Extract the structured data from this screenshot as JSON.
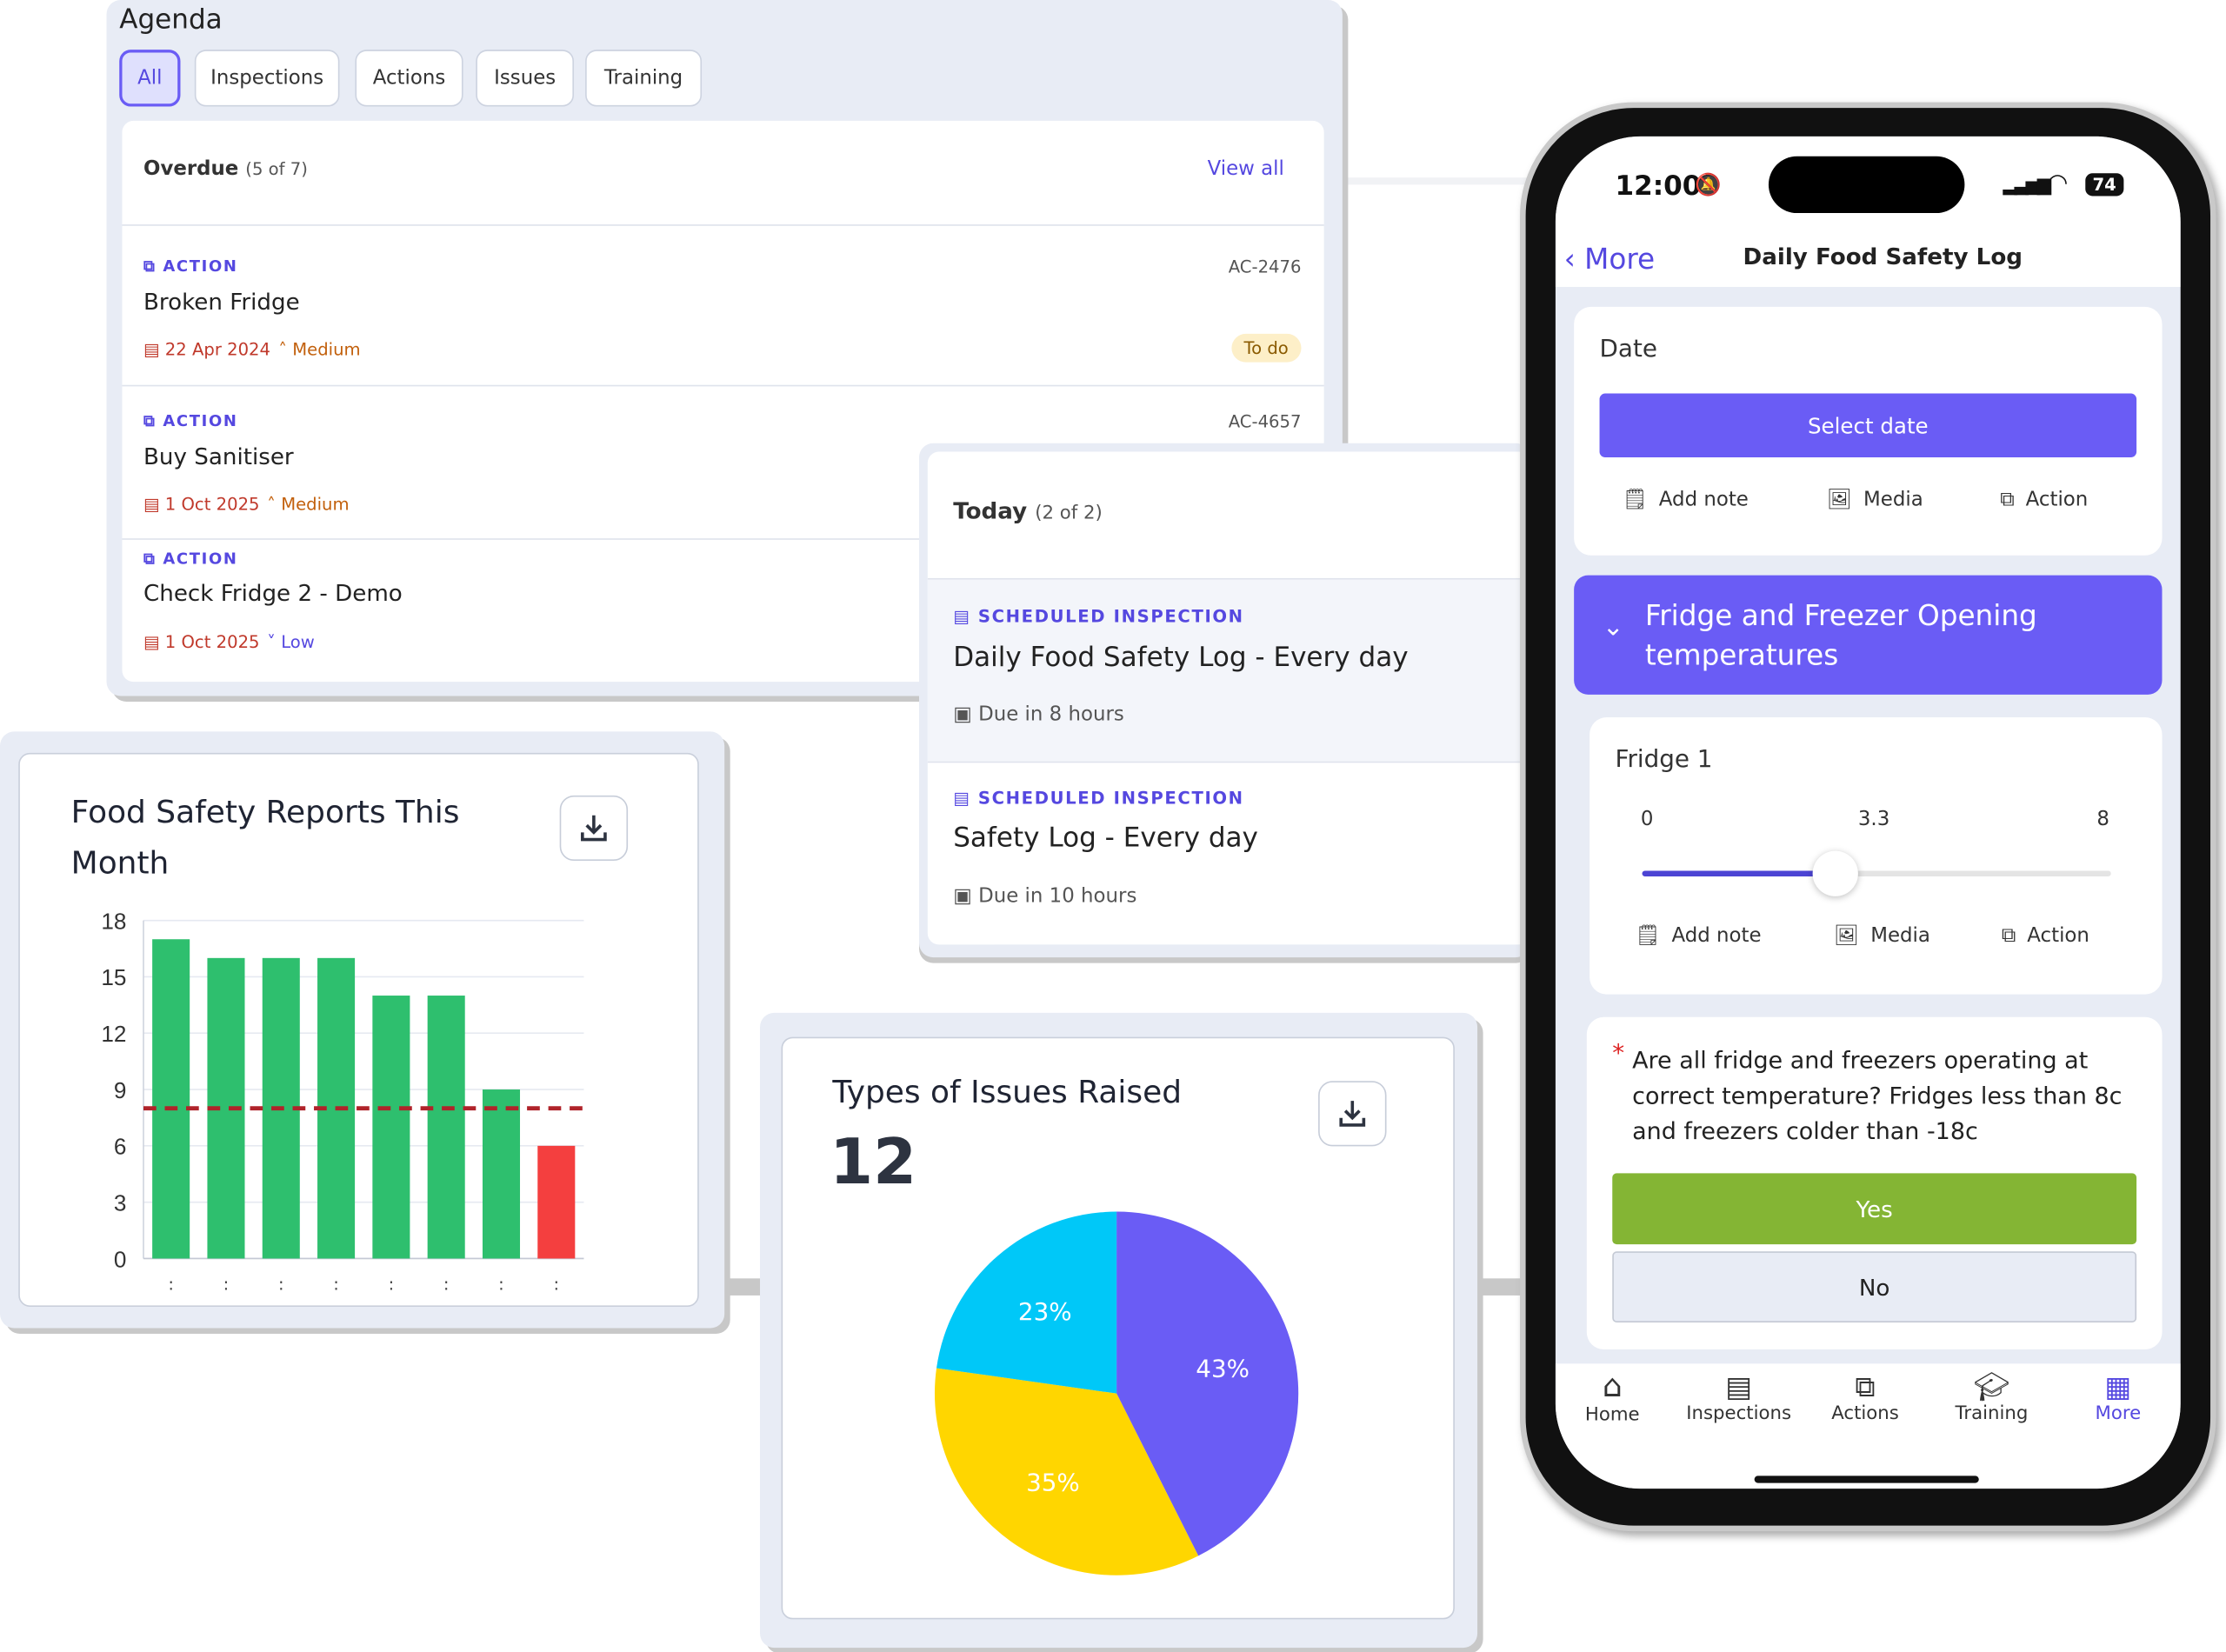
{
  "agenda": {
    "title": "Agenda",
    "tabs": [
      {
        "label": "All",
        "active": true
      },
      {
        "label": "Inspections"
      },
      {
        "label": "Actions"
      },
      {
        "label": "Issues"
      },
      {
        "label": "Training"
      }
    ],
    "overdue": {
      "label": "Overdue",
      "count": "(5 of 7)",
      "view_all": "View all"
    },
    "items": [
      {
        "kind": "ACTION",
        "title": "Broken Fridge",
        "ref": "AC-2476",
        "date": "22 Apr 2024",
        "priority": "Medium",
        "status": "To do"
      },
      {
        "kind": "ACTION",
        "title": "Buy Sanitiser",
        "ref": "AC-4657",
        "date": "1 Oct 2025",
        "priority": "Medium"
      },
      {
        "kind": "ACTION",
        "title": "Check Fridge 2 - Demo",
        "date": "1 Oct 2025",
        "priority": "Low"
      }
    ]
  },
  "today": {
    "label": "Today",
    "count": "(2 of 2)",
    "items": [
      {
        "kind": "SCHEDULED INSPECTION",
        "title": "Daily Food Safety Log - Every day",
        "due": "Due in 8 hours"
      },
      {
        "kind": "SCHEDULED INSPECTION",
        "title": "Safety Log - Every day",
        "due": "Due in 10 hours"
      }
    ]
  },
  "colors": {
    "accent": "#6a5cf5",
    "green": "#2ebf6e",
    "red": "#f43f3f",
    "yes": "#84b534",
    "ref_line": "#b0232a"
  },
  "chart_data": [
    {
      "type": "bar",
      "title": "Food Safety Reports This Month",
      "categories": [
        ":",
        ":",
        ":",
        ":",
        ":",
        ":",
        ":",
        ":"
      ],
      "values": [
        17,
        16,
        16,
        16,
        14,
        14,
        9,
        6
      ],
      "bar_colors": [
        "#2ebf6e",
        "#2ebf6e",
        "#2ebf6e",
        "#2ebf6e",
        "#2ebf6e",
        "#2ebf6e",
        "#2ebf6e",
        "#f43f3f"
      ],
      "reference_line": 8,
      "yticks": [
        "0",
        "3",
        "6",
        "9",
        "12",
        "15",
        "18"
      ],
      "ylim": [
        0,
        18
      ],
      "grid": true
    },
    {
      "type": "pie",
      "title": "Types of Issues Raised",
      "total": "12",
      "slices": [
        {
          "label": "43%",
          "value": 43,
          "color": "#6a5cf5"
        },
        {
          "label": "35%",
          "value": 35,
          "color": "#ffd600"
        },
        {
          "label": "23%",
          "value": 23,
          "color": "#00c8f8"
        }
      ]
    }
  ],
  "phone": {
    "time": "12:00",
    "battery": "74",
    "back_label": "More",
    "title": "Daily Food Safety Log",
    "date_label": "Date",
    "select_date": "Select date",
    "add_note": "Add note",
    "media": "Media",
    "action": "Action",
    "section": "Fridge and Freezer Opening temperatures",
    "fridge_label": "Fridge 1",
    "slider_min": "0",
    "slider_value": "3.3",
    "slider_max": "8",
    "slider_fraction": 0.4125,
    "question_required": "*",
    "question": "Are all fridge and freezers operating at correct temperature? Fridges less than 8c and freezers colder than -18c",
    "yes": "Yes",
    "no": "No",
    "nav": [
      {
        "label": "Home"
      },
      {
        "label": "Inspections"
      },
      {
        "label": "Actions"
      },
      {
        "label": "Training"
      },
      {
        "label": "More",
        "active": true
      }
    ]
  }
}
